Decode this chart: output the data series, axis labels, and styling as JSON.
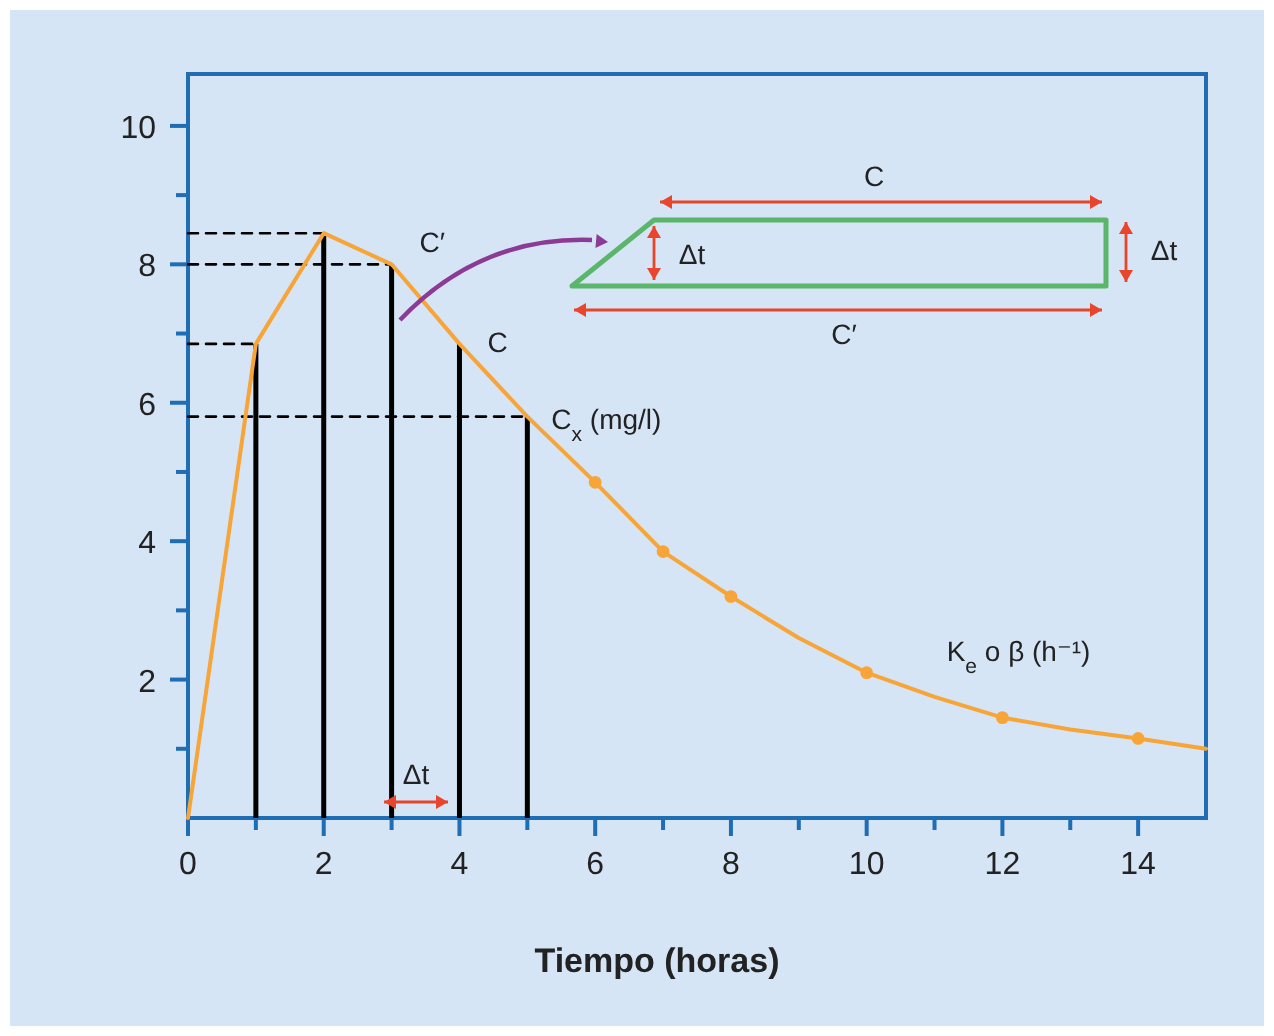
{
  "chart_data": {
    "type": "line",
    "xlabel": "Tiempo (horas)",
    "xlim": [
      0,
      15
    ],
    "ylim": [
      0,
      10.75
    ],
    "xticks": [
      0,
      {
        "value": 1,
        "label": null
      },
      2,
      {
        "value": 3,
        "label": null
      },
      4,
      {
        "value": 5,
        "label": null
      },
      6,
      {
        "value": 7,
        "label": null
      },
      8,
      {
        "value": 9,
        "label": null
      },
      10,
      {
        "value": 11,
        "label": null
      },
      12,
      {
        "value": 13,
        "label": null
      },
      14
    ],
    "yticks": [
      {
        "value": 1,
        "label": null
      },
      2,
      {
        "value": 3,
        "label": null
      },
      4,
      {
        "value": 5,
        "label": null
      },
      6,
      {
        "value": 7,
        "label": null
      },
      8,
      {
        "value": 9,
        "label": null
      },
      10
    ],
    "grid": false,
    "series": [
      {
        "x": [
          0,
          1,
          2,
          3,
          4,
          5,
          6,
          7,
          8,
          9,
          10,
          11,
          12,
          13,
          14,
          15
        ],
        "values": [
          0,
          6.85,
          8.45,
          8.0,
          6.85,
          5.8,
          4.85,
          3.85,
          3.2,
          2.6,
          2.1,
          1.75,
          1.45,
          1.28,
          1.15,
          1.0
        ],
        "color": "#f7a539",
        "marker": "none"
      },
      {
        "type": "scatter",
        "x": [
          6,
          7,
          8,
          10,
          12,
          14
        ],
        "values": [
          4.85,
          3.85,
          3.2,
          2.1,
          1.45,
          1.15
        ],
        "color": "#f7a539",
        "marker": "circle"
      },
      {
        "type": "bar",
        "x": [
          1,
          2,
          3,
          4,
          5
        ],
        "values": [
          6.85,
          8.45,
          8.0,
          6.85,
          5.8
        ],
        "color": "#000000"
      },
      {
        "type": "line",
        "x": [
          0,
          1
        ],
        "values": [
          6.85,
          6.85
        ],
        "color": "#000000",
        "line_style": "dashed",
        "marker": "none"
      },
      {
        "type": "line",
        "x": [
          0,
          2
        ],
        "values": [
          8.45,
          8.45
        ],
        "color": "#000000",
        "line_style": "dashed",
        "marker": "none"
      },
      {
        "type": "line",
        "x": [
          0,
          3
        ],
        "values": [
          8.0,
          8.0
        ],
        "color": "#000000",
        "line_style": "dashed",
        "marker": "none"
      },
      {
        "type": "line",
        "x": [
          0,
          5
        ],
        "values": [
          5.8,
          5.8
        ],
        "color": "#000000",
        "line_style": "dashed",
        "marker": "none"
      }
    ],
    "annotations": [
      {
        "text": "C′",
        "x": 3,
        "y": 8.0
      },
      {
        "text": "C",
        "x": 4,
        "y": 6.85
      },
      {
        "text": "C$_{x}$ (mg/l)",
        "x": 5,
        "y": 5.8
      },
      {
        "text": "K$_{e}$ o β (h⁻¹)",
        "x": 10,
        "y": 2.1
      },
      "Δt",
      "C",
      "Δt",
      "Δt",
      "C′"
    ]
  }
}
